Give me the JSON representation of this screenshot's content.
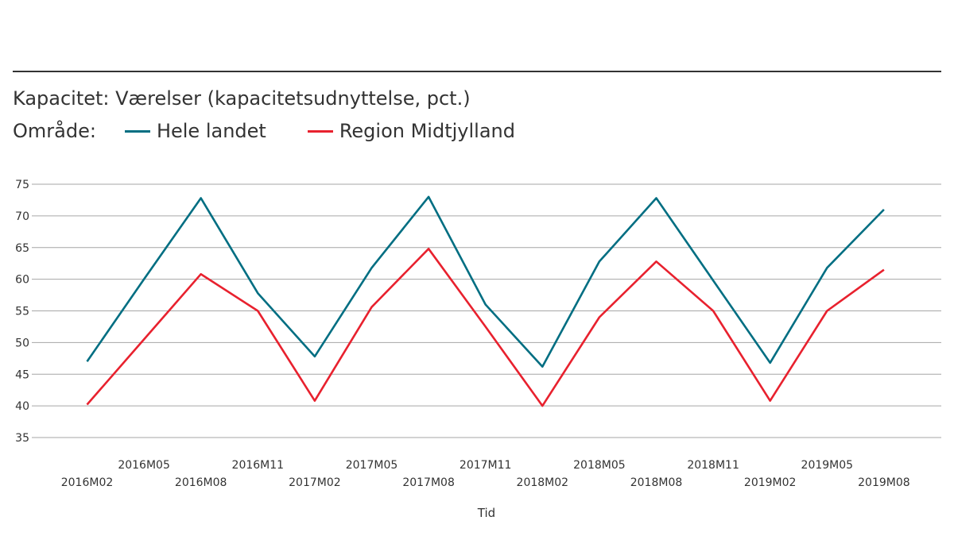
{
  "chart_data": {
    "type": "line",
    "title": "Kapacitet: Værelser (kapacitetsudnyttelse, pct.)",
    "legend_label": "Område:",
    "xlabel": "Tid",
    "ylabel": "",
    "ylim": [
      35,
      75
    ],
    "yticks": [
      35,
      40,
      45,
      50,
      55,
      60,
      65,
      70,
      75
    ],
    "grid": true,
    "legend_position": "top-left",
    "categories": [
      "2016M02",
      "2016M05",
      "2016M08",
      "2016M11",
      "2017M02",
      "2017M05",
      "2017M08",
      "2017M11",
      "2018M02",
      "2018M05",
      "2018M08",
      "2018M11",
      "2019M02",
      "2019M05",
      "2019M08"
    ],
    "series": [
      {
        "name": "Hele landet",
        "color": "#006e82",
        "values": [
          47.0,
          60.0,
          72.8,
          57.8,
          47.8,
          61.8,
          73.0,
          56.0,
          46.2,
          62.8,
          72.8,
          59.8,
          46.8,
          61.8,
          71.0
        ]
      },
      {
        "name": "Region Midtjylland",
        "color": "#e8212e",
        "values": [
          40.2,
          50.5,
          60.8,
          55.0,
          40.8,
          55.6,
          64.8,
          52.5,
          40.0,
          54.0,
          62.8,
          55.0,
          40.8,
          55.0,
          61.5
        ]
      }
    ]
  }
}
